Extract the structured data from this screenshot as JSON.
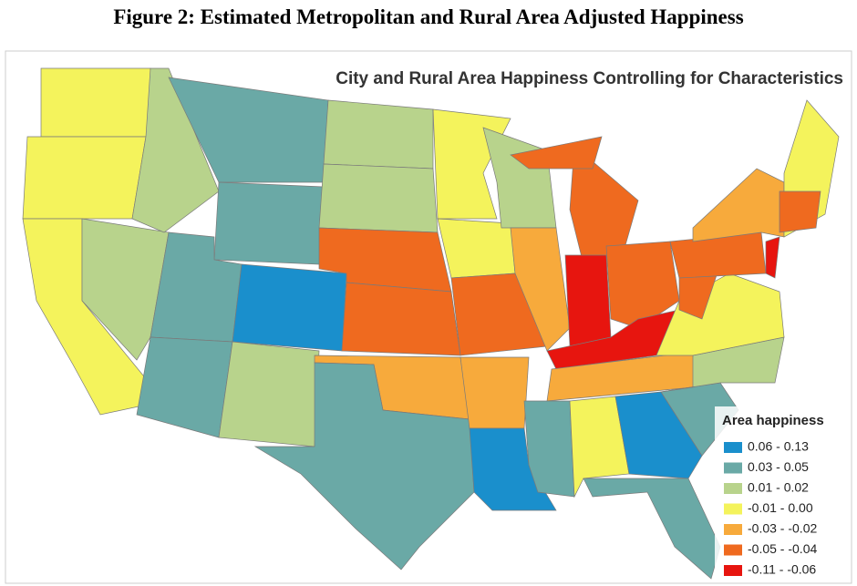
{
  "figure_title": "Figure 2: Estimated Metropolitan and Rural Area Adjusted Happiness",
  "map_title": "City and Rural Area Happiness Controlling for Characteristics",
  "legend": {
    "title": "Area happiness",
    "items": [
      {
        "label": "0.06 - 0.13",
        "color": "#1a8fcc"
      },
      {
        "label": "0.03 - 0.05",
        "color": "#6aa9a6"
      },
      {
        "label": "0.01 - 0.02",
        "color": "#b8d38c"
      },
      {
        "label": "-0.01 - 0.00",
        "color": "#f4f35c"
      },
      {
        "label": "-0.03 - -0.02",
        "color": "#f7aa3c"
      },
      {
        "label": "-0.05 - -0.04",
        "color": "#ef6a1f"
      },
      {
        "label": "-0.11 - -0.06",
        "color": "#e7150f"
      }
    ]
  }
}
